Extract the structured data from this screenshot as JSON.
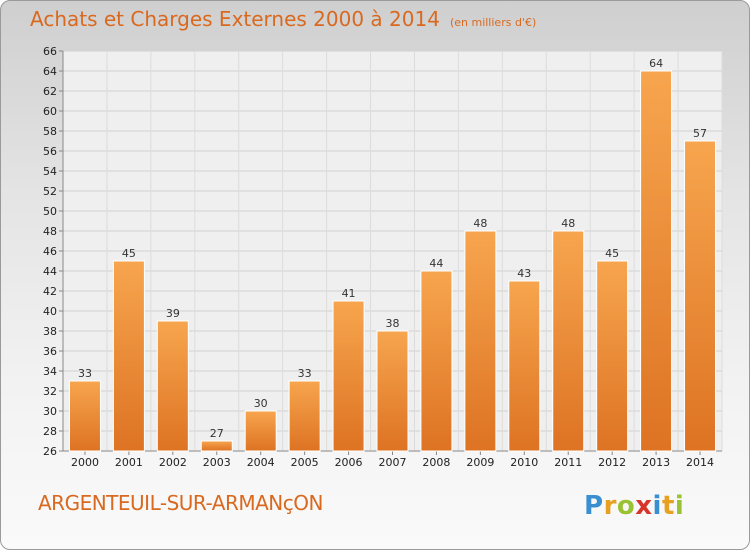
{
  "header": {
    "title": "Achats et Charges Externes 2000 à 2014",
    "subtitle": "(en milliers d'€)"
  },
  "footer": {
    "commune": "ARGENTEUIL-SUR-ARMANçON",
    "logo": "Proxiti"
  },
  "colors": {
    "bar_top": "#f7a54e",
    "bar_bottom": "#dd7323",
    "title": "#d9691f"
  },
  "chart_data": {
    "type": "bar",
    "title": "Achats et Charges Externes 2000 à 2014",
    "subtitle": "(en milliers d'€)",
    "xlabel": "",
    "ylabel": "",
    "categories": [
      "2000",
      "2001",
      "2002",
      "2003",
      "2004",
      "2005",
      "2006",
      "2007",
      "2008",
      "2009",
      "2010",
      "2011",
      "2012",
      "2013",
      "2014"
    ],
    "values": [
      33,
      45,
      39,
      27,
      30,
      33,
      41,
      38,
      44,
      48,
      43,
      48,
      45,
      64,
      57
    ],
    "ylim": [
      26,
      66
    ],
    "yticks": [
      26,
      28,
      30,
      32,
      34,
      36,
      38,
      40,
      42,
      44,
      46,
      48,
      50,
      52,
      54,
      56,
      58,
      60,
      62,
      64,
      66
    ],
    "grid": true,
    "legend": "none"
  }
}
